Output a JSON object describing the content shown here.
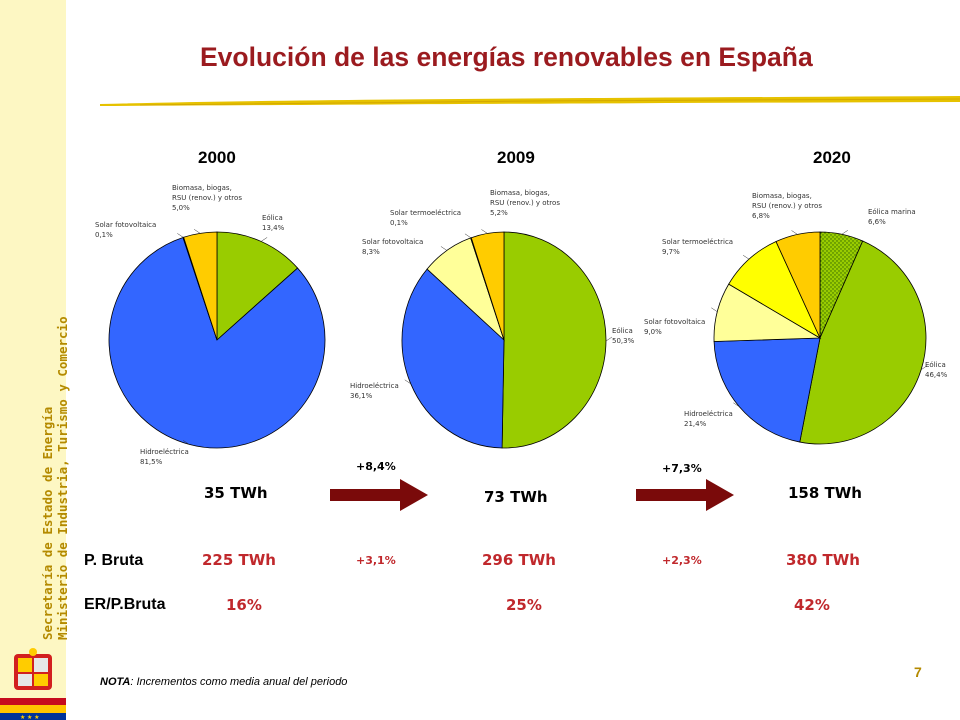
{
  "sidebar": {
    "line1": "Secretaría de Estado de Energía",
    "line2": "Ministerio de Industria, Turismo y Comercio"
  },
  "title": "Evolución de las energías renovables en España",
  "colors": {
    "title": "#9b1b1f",
    "accent_red": "#c0282c",
    "arrow": "#7a0a0a",
    "eolica": "#99cc00",
    "hidro": "#3366ff",
    "solar_fv": "#ffff99",
    "solar_te": "#ffff00",
    "biomasa": "#ffcc00",
    "eolica_marina": "#99cc00"
  },
  "chart_data": [
    {
      "type": "pie",
      "title": "2000",
      "slices": [
        {
          "label": "Eólica",
          "value": 13.4,
          "value_label": "13,4%"
        },
        {
          "label": "Hidroeléctrica",
          "value": 81.5,
          "value_label": "81,5%"
        },
        {
          "label": "Solar fotovoltaica",
          "value": 0.1,
          "value_label": "0,1%"
        },
        {
          "label": "Biomasa, biogas, RSU (renov.) y otros",
          "value": 5.0,
          "value_label": "5,0%"
        }
      ],
      "total": "35 TWh"
    },
    {
      "type": "pie",
      "title": "2009",
      "slices": [
        {
          "label": "Eólica",
          "value": 50.3,
          "value_label": "50,3%"
        },
        {
          "label": "Hidroeléctrica",
          "value": 36.1,
          "value_label": "36,1%"
        },
        {
          "label": "Solar fotovoltaica",
          "value": 8.3,
          "value_label": "8,3%"
        },
        {
          "label": "Solar termoeléctrica",
          "value": 0.1,
          "value_label": "0,1%"
        },
        {
          "label": "Biomasa, biogas, RSU (renov.) y otros",
          "value": 5.2,
          "value_label": "5,2%"
        }
      ],
      "total": "73 TWh"
    },
    {
      "type": "pie",
      "title": "2020",
      "slices": [
        {
          "label": "Eólica marina",
          "value": 6.6,
          "value_label": "6,6%"
        },
        {
          "label": "Eólica",
          "value": 46.4,
          "value_label": "46,4%"
        },
        {
          "label": "Hidroeléctrica",
          "value": 21.4,
          "value_label": "21,4%"
        },
        {
          "label": "Solar fotovoltaica",
          "value": 9.0,
          "value_label": "9,0%"
        },
        {
          "label": "Solar termoeléctrica",
          "value": 9.7,
          "value_label": "9,7%"
        },
        {
          "label": "Biomasa, biogas, RSU (renov.) y otros",
          "value": 6.8,
          "value_label": "6,8%"
        }
      ],
      "total": "158 TWh"
    }
  ],
  "growth": {
    "renew_2000_2009": "+8,4%",
    "renew_2009_2020": "+7,3%",
    "bruta_2000_2009": "+3,1%",
    "bruta_2009_2020": "+2,3%"
  },
  "rows": {
    "bruta_label": "P. Bruta",
    "bruta_values": [
      "225 TWh",
      "296 TWh",
      "380 TWh"
    ],
    "ratio_label": "ER/P.Bruta",
    "ratio_values": [
      "16%",
      "25%",
      "42%"
    ]
  },
  "note": {
    "prefix": "NOTA",
    "text": ": Incrementos como media anual del periodo"
  },
  "page_number": "7"
}
